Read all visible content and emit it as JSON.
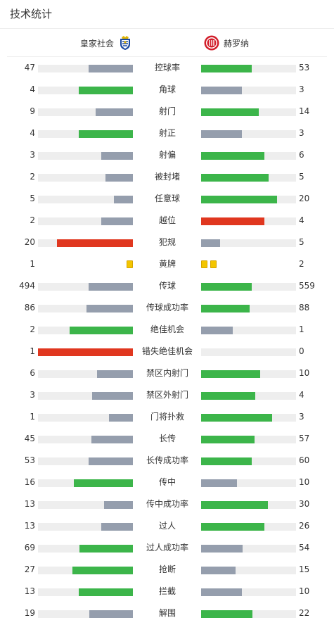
{
  "title": "技术统计",
  "teams": {
    "home": "皇家社会",
    "away": "赫罗纳"
  },
  "colors": {
    "win": "#3cb54a",
    "lose": "#959ead",
    "foul": "#e0371f",
    "track": "#eeeeee",
    "card": "#f3c500"
  },
  "stats": [
    {
      "label": "控球率",
      "home": 47,
      "away": 53,
      "home_fill": 0.47,
      "away_fill": 0.53,
      "home_color": "lose",
      "away_color": "win"
    },
    {
      "label": "角球",
      "home": 4,
      "away": 3,
      "home_fill": 0.57,
      "away_fill": 0.43,
      "home_color": "win",
      "away_color": "lose"
    },
    {
      "label": "射门",
      "home": 9,
      "away": 14,
      "home_fill": 0.39,
      "away_fill": 0.61,
      "home_color": "lose",
      "away_color": "win"
    },
    {
      "label": "射正",
      "home": 4,
      "away": 3,
      "home_fill": 0.57,
      "away_fill": 0.43,
      "home_color": "win",
      "away_color": "lose"
    },
    {
      "label": "射偏",
      "home": 3,
      "away": 6,
      "home_fill": 0.33,
      "away_fill": 0.67,
      "home_color": "lose",
      "away_color": "win"
    },
    {
      "label": "被封堵",
      "home": 2,
      "away": 5,
      "home_fill": 0.29,
      "away_fill": 0.71,
      "home_color": "lose",
      "away_color": "win"
    },
    {
      "label": "任意球",
      "home": 5,
      "away": 20,
      "home_fill": 0.2,
      "away_fill": 0.8,
      "home_color": "lose",
      "away_color": "win"
    },
    {
      "label": "越位",
      "home": 2,
      "away": 4,
      "home_fill": 0.33,
      "away_fill": 0.67,
      "home_color": "lose",
      "away_color": "foul"
    },
    {
      "label": "犯规",
      "home": 20,
      "away": 5,
      "home_fill": 0.8,
      "away_fill": 0.2,
      "home_color": "foul",
      "away_color": "lose"
    },
    {
      "label": "黄牌",
      "home": 1,
      "away": 2,
      "type": "cards"
    },
    {
      "label": "传球",
      "home": 494,
      "away": 559,
      "home_fill": 0.47,
      "away_fill": 0.53,
      "home_color": "lose",
      "away_color": "win"
    },
    {
      "label": "传球成功率",
      "home": 86,
      "away": 88,
      "home_fill": 0.49,
      "away_fill": 0.51,
      "home_color": "lose",
      "away_color": "win"
    },
    {
      "label": "绝佳机会",
      "home": 2,
      "away": 1,
      "home_fill": 0.67,
      "away_fill": 0.33,
      "home_color": "win",
      "away_color": "lose"
    },
    {
      "label": "错失绝佳机会",
      "home": 1,
      "away": 0,
      "home_fill": 1.0,
      "away_fill": 0.0,
      "home_color": "foul",
      "away_color": "lose"
    },
    {
      "label": "禁区内射门",
      "home": 6,
      "away": 10,
      "home_fill": 0.38,
      "away_fill": 0.62,
      "home_color": "lose",
      "away_color": "win"
    },
    {
      "label": "禁区外射门",
      "home": 3,
      "away": 4,
      "home_fill": 0.43,
      "away_fill": 0.57,
      "home_color": "lose",
      "away_color": "win"
    },
    {
      "label": "门将扑救",
      "home": 1,
      "away": 3,
      "home_fill": 0.25,
      "away_fill": 0.75,
      "home_color": "lose",
      "away_color": "win"
    },
    {
      "label": "长传",
      "home": 45,
      "away": 57,
      "home_fill": 0.44,
      "away_fill": 0.56,
      "home_color": "lose",
      "away_color": "win"
    },
    {
      "label": "长传成功率",
      "home": 53,
      "away": 60,
      "home_fill": 0.47,
      "away_fill": 0.53,
      "home_color": "lose",
      "away_color": "win"
    },
    {
      "label": "传中",
      "home": 16,
      "away": 10,
      "home_fill": 0.62,
      "away_fill": 0.38,
      "home_color": "win",
      "away_color": "lose"
    },
    {
      "label": "传中成功率",
      "home": 13,
      "away": 30,
      "home_fill": 0.3,
      "away_fill": 0.7,
      "home_color": "lose",
      "away_color": "win"
    },
    {
      "label": "过人",
      "home": 13,
      "away": 26,
      "home_fill": 0.33,
      "away_fill": 0.67,
      "home_color": "lose",
      "away_color": "win"
    },
    {
      "label": "过人成功率",
      "home": 69,
      "away": 54,
      "home_fill": 0.56,
      "away_fill": 0.44,
      "home_color": "win",
      "away_color": "lose"
    },
    {
      "label": "抢断",
      "home": 27,
      "away": 15,
      "home_fill": 0.64,
      "away_fill": 0.36,
      "home_color": "win",
      "away_color": "lose"
    },
    {
      "label": "拦截",
      "home": 13,
      "away": 10,
      "home_fill": 0.57,
      "away_fill": 0.43,
      "home_color": "win",
      "away_color": "lose"
    },
    {
      "label": "解围",
      "home": 19,
      "away": 22,
      "home_fill": 0.46,
      "away_fill": 0.54,
      "home_color": "lose",
      "away_color": "win"
    }
  ]
}
